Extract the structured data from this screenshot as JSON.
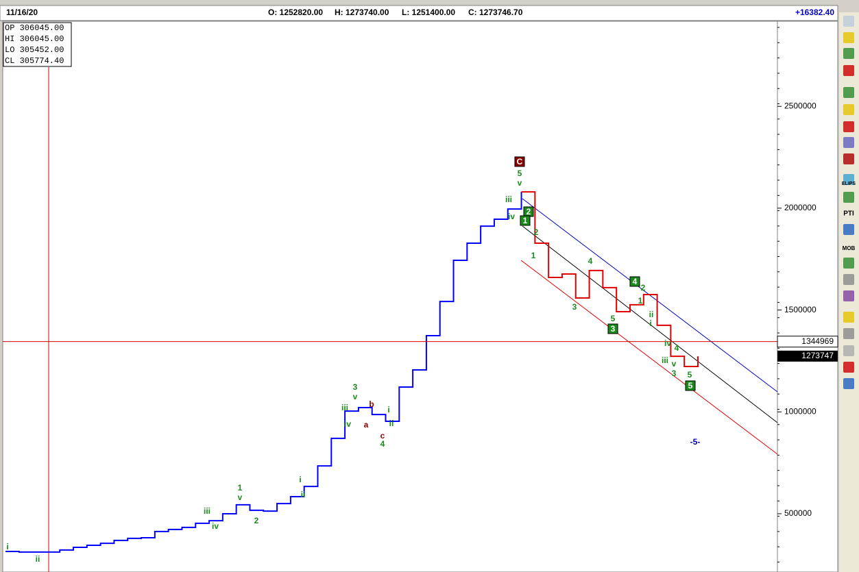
{
  "header": {
    "date": "11/16/20",
    "open": "O: 1252820.00",
    "high": "H: 1273740.00",
    "low": "L: 1251400.00",
    "close": "C: 1273746.70",
    "change": "+16382.40"
  },
  "info_box": [
    "OP 306045.00",
    "HI  306045.00",
    "LO  305452.00",
    "CL  305774.40"
  ],
  "toolbar": [
    "PTI",
    "MOB",
    "ELIPS"
  ],
  "chart_data": {
    "type": "line",
    "series": [
      {
        "color": "#0000ff",
        "values": [
          315000,
          312000,
          312000,
          312000,
          322000,
          335000,
          345000,
          355000,
          369000,
          379000,
          382000,
          413000,
          423000,
          433000,
          453000,
          466000,
          500000,
          544000,
          517000,
          513000,
          550000,
          584000,
          634000,
          735000,
          870000,
          1004000,
          1021000,
          987000,
          954000,
          1122000,
          1206000,
          1374000,
          1542000,
          1744000,
          1828000,
          1912000,
          1946000,
          1996000,
          2080000,
          null,
          null,
          null,
          null,
          null,
          null,
          null,
          null,
          null,
          null,
          null,
          null,
          null
        ]
      },
      {
        "color": "#e00000",
        "values": [
          null,
          null,
          null,
          null,
          null,
          null,
          null,
          null,
          null,
          null,
          null,
          null,
          null,
          null,
          null,
          null,
          null,
          null,
          null,
          null,
          null,
          null,
          null,
          null,
          null,
          null,
          null,
          null,
          null,
          null,
          null,
          null,
          null,
          null,
          null,
          null,
          null,
          null,
          2080000,
          1828000,
          1660000,
          1677000,
          1559000,
          1694000,
          1610000,
          1492000,
          1526000,
          1576000,
          1425000,
          1273000,
          1223000,
          1273000
        ]
      }
    ],
    "ylim": [
      214000,
      2911000
    ],
    "yticks": [
      500000,
      1000000,
      1500000,
      2000000,
      2500000
    ],
    "cursor_price": 1344969,
    "last_price": 1273747,
    "wave_labels": [
      "i",
      "ii",
      "iii",
      "iv",
      "1",
      "v",
      "2",
      "i",
      "ii",
      "iii",
      "iv",
      "3",
      "v",
      "b",
      "a",
      "i",
      "ii",
      "c",
      "4",
      "C",
      "5",
      "v",
      "iii",
      "iv",
      "2",
      "1",
      "2",
      "1",
      "4",
      "3",
      "5",
      "3",
      "4",
      "2",
      "1",
      "ii",
      "i",
      "iv",
      "4",
      "iii",
      "v",
      "3",
      "5",
      "5",
      "-5-"
    ]
  }
}
